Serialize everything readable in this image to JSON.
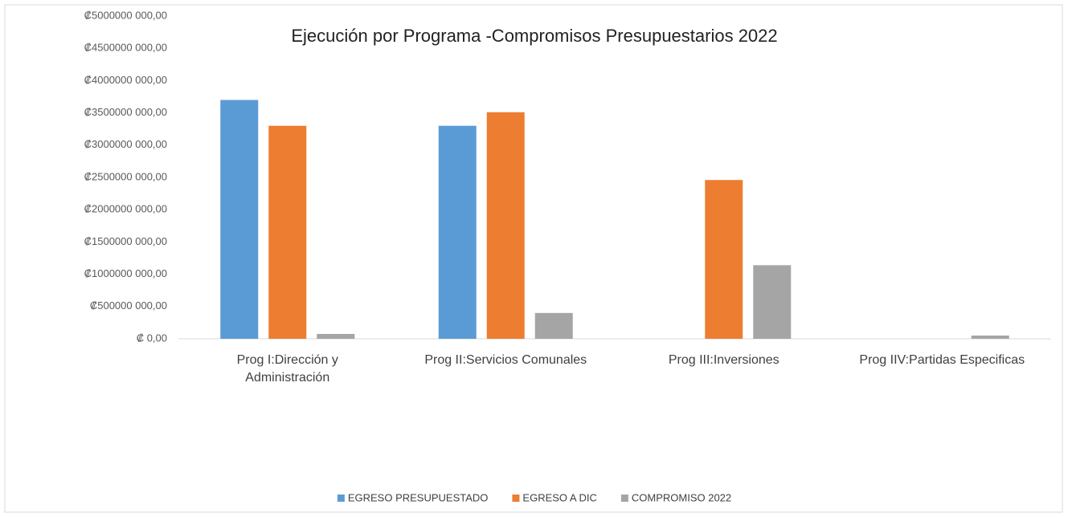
{
  "chart_data": {
    "type": "bar",
    "title": "Ejecución por Programa -Compromisos Presupuestarios 2022",
    "categories": [
      "Prog I:Dirección y Administración",
      "Prog II:Servicios Comunales",
      "Prog III:Inversiones",
      "Prog IIV:Partidas Especificas"
    ],
    "series": [
      {
        "name": "EGRESO PRESUPUESTADO",
        "color": "#5b9bd5",
        "values": [
          3700000000,
          3300000000,
          0,
          0
        ]
      },
      {
        "name": "EGRESO A DIC",
        "color": "#ed7d31",
        "values": [
          3300000000,
          3510000000,
          2460000000,
          0
        ]
      },
      {
        "name": "COMPROMISO 2022",
        "color": "#a5a5a5",
        "values": [
          75000000,
          400000000,
          1140000000,
          50000000
        ]
      }
    ],
    "ylim": [
      0,
      5000000000
    ],
    "yticks": [
      {
        "value": 0,
        "label": "₡ 0,00"
      },
      {
        "value": 500000000,
        "label": "₡500000 000,00"
      },
      {
        "value": 1000000000,
        "label": "₡1000000 000,00"
      },
      {
        "value": 1500000000,
        "label": "₡1500000 000,00"
      },
      {
        "value": 2000000000,
        "label": "₡2000000 000,00"
      },
      {
        "value": 2500000000,
        "label": "₡2500000 000,00"
      },
      {
        "value": 3000000000,
        "label": "₡3000000 000,00"
      },
      {
        "value": 3500000000,
        "label": "₡3500000 000,00"
      },
      {
        "value": 4000000000,
        "label": "₡4000000 000,00"
      },
      {
        "value": 4500000000,
        "label": "₡4500000 000,00"
      },
      {
        "value": 5000000000,
        "label": "₡5000000 000,00"
      }
    ],
    "grid": false,
    "legend": "bottom"
  }
}
